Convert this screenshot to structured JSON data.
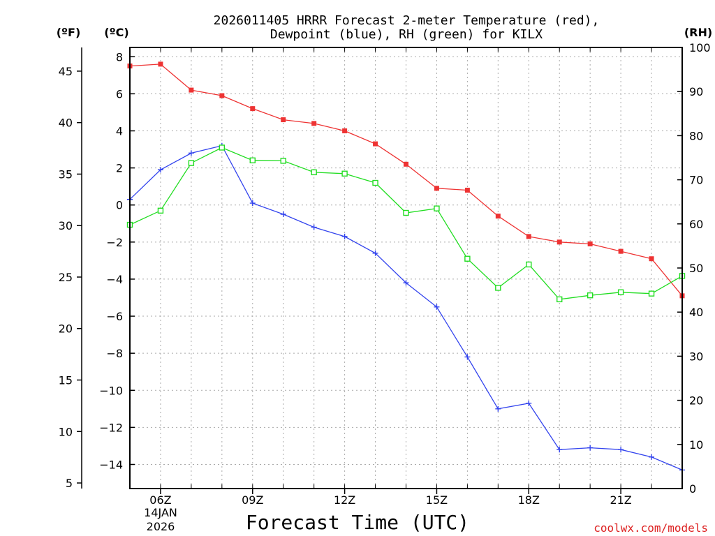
{
  "chart_data": {
    "type": "line",
    "title_lines": [
      "2026011405 HRRR Forecast 2-meter Temperature (red),",
      "Dewpoint (blue), RH (green) for KILX"
    ],
    "xlabel": "Forecast Time (UTC)",
    "x_hours": [
      5,
      6,
      7,
      8,
      9,
      10,
      11,
      12,
      13,
      14,
      15,
      16,
      17,
      18,
      19,
      20,
      21,
      22,
      23
    ],
    "xlim": [
      5,
      23
    ],
    "x_ticks": [
      {
        "hour": 6,
        "label": "06Z"
      },
      {
        "hour": 9,
        "label": "09Z"
      },
      {
        "hour": 12,
        "label": "12Z"
      },
      {
        "hour": 15,
        "label": "15Z"
      },
      {
        "hour": 18,
        "label": "18Z"
      },
      {
        "hour": 21,
        "label": "21Z"
      }
    ],
    "date_lines": [
      "14JAN",
      "2026"
    ],
    "left_axis_c": {
      "label": "(ºC)",
      "ylim": [
        -15.3,
        8.5
      ],
      "ticks": [
        8,
        6,
        4,
        2,
        0,
        -2,
        -4,
        -6,
        -8,
        -10,
        -12,
        -14
      ]
    },
    "left_axis_f": {
      "label": "(ºF)",
      "ylim": [
        4.46,
        47.3
      ],
      "ticks": [
        45,
        40,
        35,
        30,
        25,
        20,
        15,
        10,
        5
      ]
    },
    "right_axis": {
      "label": "(RH)",
      "ylim": [
        0,
        100
      ],
      "ticks": [
        100,
        90,
        80,
        70,
        60,
        50,
        40,
        30,
        20,
        10,
        0
      ]
    },
    "series": [
      {
        "name": "2-meter Temperature",
        "units": "C",
        "color": "#ee3333",
        "marker": "filled-square",
        "values": [
          7.5,
          7.6,
          6.2,
          5.9,
          5.2,
          4.6,
          4.4,
          4.0,
          3.3,
          2.2,
          0.9,
          0.8,
          -0.6,
          -1.7,
          -2.0,
          -2.1,
          -2.5,
          -2.9,
          -4.9
        ]
      },
      {
        "name": "Dewpoint",
        "units": "C",
        "color": "#3344ee",
        "marker": "plus",
        "values": [
          0.3,
          1.9,
          2.8,
          3.2,
          0.1,
          -0.5,
          -1.2,
          -1.7,
          -2.6,
          -4.2,
          -5.5,
          -8.2,
          -11.0,
          -10.7,
          -13.2,
          -13.1,
          -13.2,
          -13.6,
          -14.3
        ]
      },
      {
        "name": "Relative Humidity",
        "units": "%",
        "color": "#22dd22",
        "marker": "open-square",
        "values": [
          59.8,
          63.0,
          73.8,
          77.3,
          74.4,
          74.3,
          71.7,
          71.4,
          69.3,
          62.5,
          63.5,
          52.1,
          45.5,
          50.8,
          42.9,
          43.8,
          44.5,
          44.2,
          48.2
        ]
      }
    ]
  },
  "credit": {
    "text": "coolwx.com/models",
    "color": "#dd2222"
  }
}
